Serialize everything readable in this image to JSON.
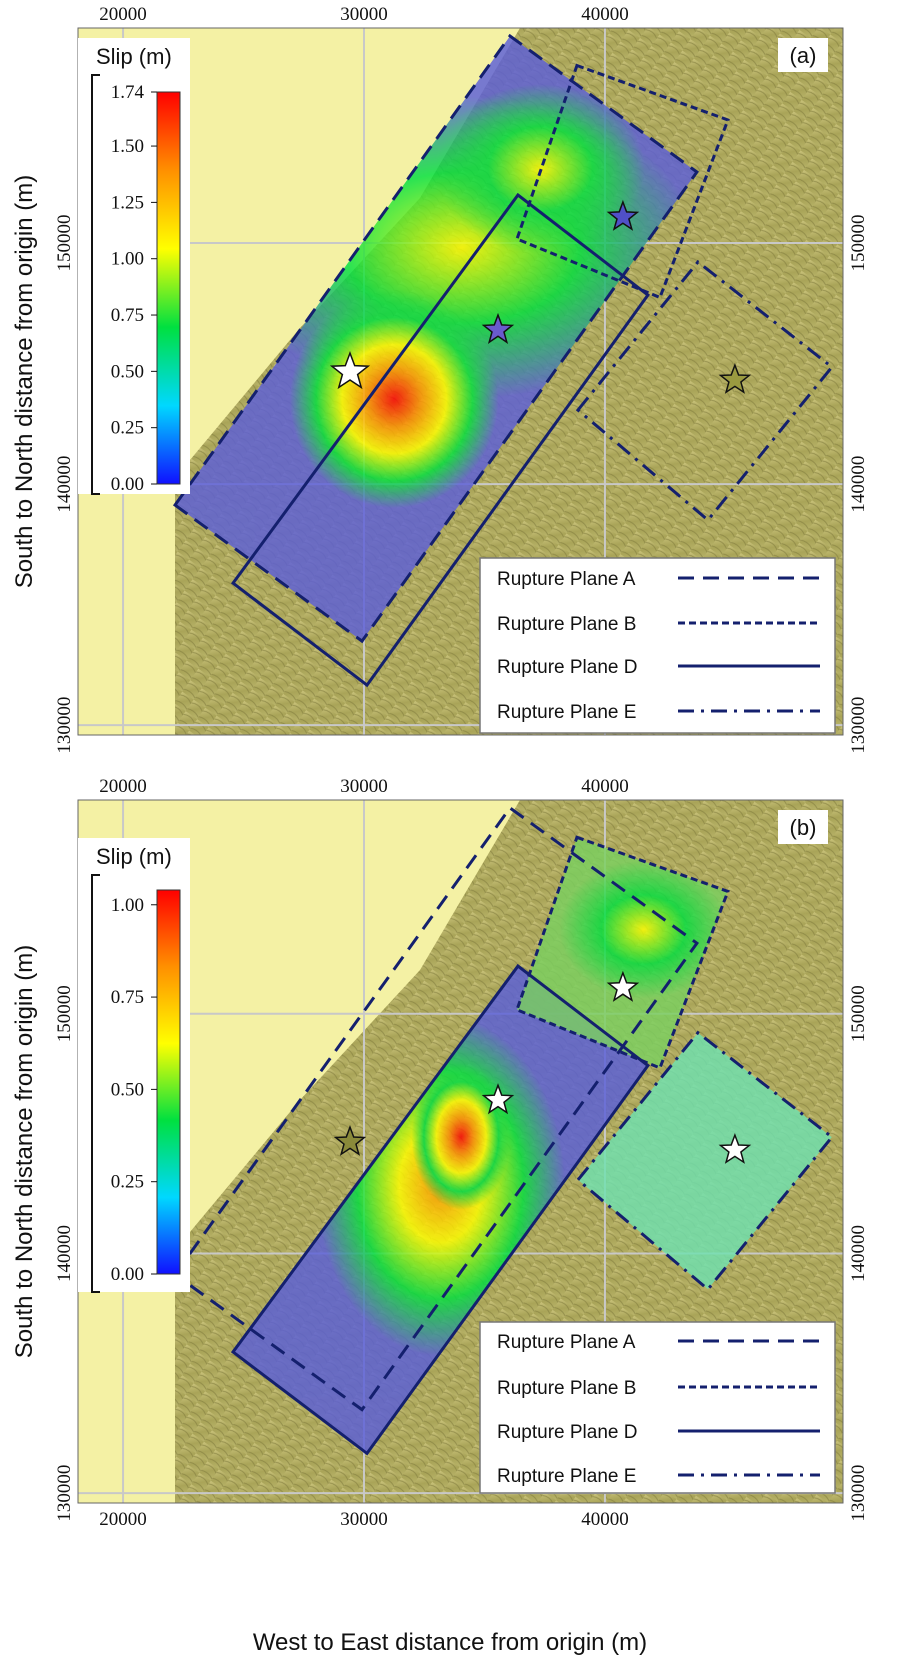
{
  "x_label": "West to East distance from origin (m)",
  "y_label": "South to North distance from origin (m)",
  "xlim": [
    18130,
    49880
  ],
  "ylim": [
    129590,
    158920
  ],
  "xticks": [
    20000,
    30000,
    40000
  ],
  "yticks": [
    130000,
    140000,
    150000
  ],
  "colormap": [
    "#1010ff",
    "#00d8ff",
    "#00e040",
    "#ffff00",
    "#ff9000",
    "#ff0000"
  ],
  "planes": [
    {
      "name": "Rupture Plane A",
      "dash": "16 9",
      "vertices": [
        [
          22158,
          139129
        ],
        [
          36058,
          158589
        ],
        [
          43817,
          152946
        ],
        [
          29917,
          133485
        ]
      ]
    },
    {
      "name": "Rupture Plane B",
      "dash": "7 4",
      "vertices": [
        [
          38838,
          157364
        ],
        [
          45104,
          155105
        ],
        [
          42282,
          147741
        ],
        [
          36349,
          150167
        ]
      ]
    },
    {
      "name": "Rupture Plane D",
      "dash": "none",
      "vertices": [
        [
          24564,
          135892
        ],
        [
          36390,
          151992
        ],
        [
          41784,
          147842
        ],
        [
          30124,
          131660
        ]
      ]
    },
    {
      "name": "Rupture Plane E",
      "dash": "16 7 3 7",
      "vertices": [
        [
          38880,
          143071
        ],
        [
          43859,
          149212
        ],
        [
          49419,
          144855
        ],
        [
          44274,
          138506
        ]
      ]
    }
  ],
  "hypocenters": [
    {
      "x": 29419,
      "y": 144647
    },
    {
      "x": 35560,
      "y": 146390
    },
    {
      "x": 40747,
      "y": 151079
    },
    {
      "x": 45394,
      "y": 144315
    }
  ],
  "panels": [
    {
      "label": "(a)",
      "colorbar": {
        "title": "Slip (m)",
        "lim": [
          0,
          1.74
        ],
        "ticks": [
          {
            "value": 0,
            "label": "0.00"
          },
          0.25,
          {
            "value": 0.5,
            "label": "0.50"
          },
          0.75,
          {
            "value": 1,
            "label": "1.00"
          },
          1.25,
          {
            "value": 1.5,
            "label": "1.50"
          },
          1.74
        ]
      },
      "hypocenter_colors": [
        "#ffffff",
        "#6a5acd",
        "#5050c8",
        "#9a9a40"
      ]
    },
    {
      "label": "(b)",
      "colorbar": {
        "title": "Slip (m)",
        "lim": [
          0,
          1.04
        ],
        "ticks": [
          {
            "value": 0,
            "label": "0.00"
          },
          0.25,
          {
            "value": 0.5,
            "label": "0.50"
          },
          0.75,
          {
            "value": 1,
            "label": "1.00"
          }
        ]
      },
      "hypocenter_colors": [
        "#8a8a3a",
        "#ffffff",
        "#ffffff",
        "#ffffff"
      ]
    }
  ]
}
